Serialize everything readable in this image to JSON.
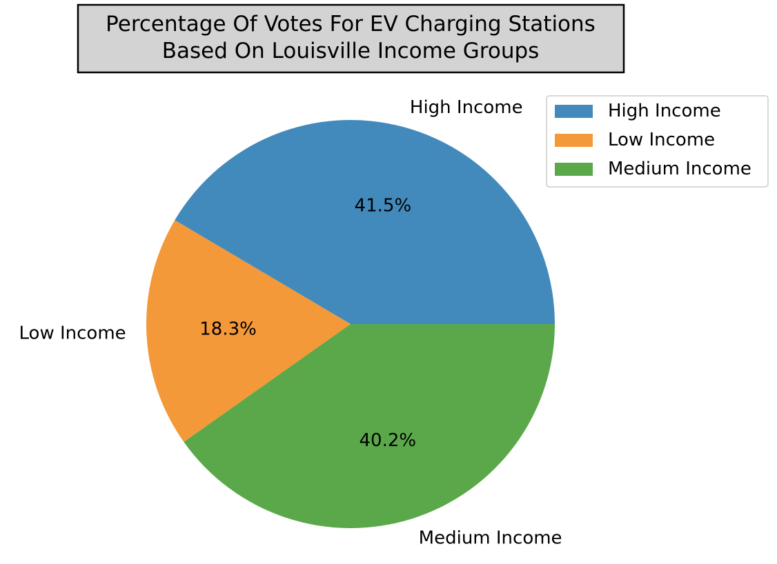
{
  "chart_data": {
    "type": "pie",
    "title_lines": [
      "Percentage Of Votes For EV Charging Stations",
      "Based On Louisville Income Groups"
    ],
    "start_angle_deg": 0,
    "direction": "counterclockwise",
    "legend_position": "top-right",
    "slices": [
      {
        "label": "High Income",
        "value": 41.5,
        "pct_label": "41.5%",
        "color": "#438ABC"
      },
      {
        "label": "Low Income",
        "value": 18.3,
        "pct_label": "18.3%",
        "color": "#F39939"
      },
      {
        "label": "Medium Income",
        "value": 40.2,
        "pct_label": "40.2%",
        "color": "#5BA84B"
      }
    ]
  },
  "colors": {
    "title_box_fill": "#D3D3D3",
    "title_box_border": "#000000",
    "legend_border": "#CCCCCC"
  }
}
